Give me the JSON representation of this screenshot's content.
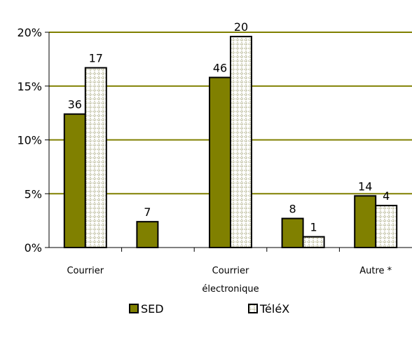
{
  "chart_data": {
    "type": "bar",
    "categories": [
      "Courrier",
      "",
      "Courrier électronique",
      "",
      "Autre *"
    ],
    "category_label_lines": [
      [
        "Courrier"
      ],
      [
        ""
      ],
      [
        "Courrier",
        "électronique"
      ],
      [
        ""
      ],
      [
        "Autre *"
      ]
    ],
    "series": [
      {
        "name": "SED",
        "values": [
          12.4,
          2.4,
          15.8,
          2.7,
          4.8
        ],
        "data_labels": [
          "36",
          "7",
          "46",
          "8",
          "14"
        ],
        "color": "#808000",
        "pattern": "solid"
      },
      {
        "name": "TéléX",
        "values": [
          16.7,
          null,
          19.6,
          1.0,
          3.9
        ],
        "data_labels": [
          "17",
          "",
          "20",
          "1",
          "4"
        ],
        "color": "#ffffff",
        "pattern": "dashed-grid"
      }
    ],
    "ylim": [
      0,
      20
    ],
    "yticks": [
      0,
      5,
      10,
      15,
      20
    ],
    "ytick_labels": [
      "0%",
      "5%",
      "10%",
      "15%",
      "20%"
    ],
    "xlabel": "",
    "ylabel": "",
    "title": "",
    "grid": true,
    "gridline_color": "#808000",
    "legend_position": "bottom"
  }
}
